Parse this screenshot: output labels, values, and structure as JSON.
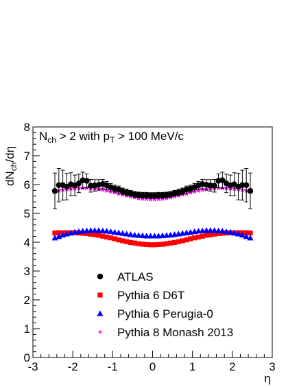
{
  "chart_data": {
    "type": "scatter",
    "annotation": {
      "prefix": "N",
      "prefix_sub": "ch",
      "middle": " > 2 with p",
      "middle_sub": "T",
      "suffix": " > 100 MeV/c"
    },
    "ylabel": {
      "main": "dN",
      "sub": "ch",
      "tail": "/dη"
    },
    "xlabel": "η",
    "xlim": [
      -3,
      3
    ],
    "ylim": [
      0,
      8
    ],
    "x_ticks": [
      "-3",
      "-2",
      "-1",
      "0",
      "1",
      "2",
      "3"
    ],
    "y_ticks": [
      "0",
      "1",
      "2",
      "3",
      "4",
      "5",
      "6",
      "7",
      "8"
    ],
    "grid": false,
    "legend_position": "bottom-center",
    "series": [
      {
        "name": "ATLAS",
        "marker": "circle",
        "color": "#000000",
        "x": [
          -2.45,
          -2.35,
          -2.25,
          -2.15,
          -2.05,
          -1.95,
          -1.85,
          -1.75,
          -1.65,
          -1.55,
          -1.45,
          -1.35,
          -1.25,
          -1.15,
          -1.05,
          -0.95,
          -0.85,
          -0.75,
          -0.65,
          -0.55,
          -0.45,
          -0.35,
          -0.25,
          -0.15,
          -0.05,
          0.05,
          0.15,
          0.25,
          0.35,
          0.45,
          0.55,
          0.65,
          0.75,
          0.85,
          0.95,
          1.05,
          1.15,
          1.25,
          1.35,
          1.45,
          1.55,
          1.65,
          1.75,
          1.85,
          1.95,
          2.05,
          2.15,
          2.25,
          2.35,
          2.45
        ],
        "y": [
          5.78,
          5.98,
          5.98,
          5.93,
          6.01,
          5.97,
          6.04,
          6.15,
          6.13,
          5.96,
          5.97,
          5.99,
          6.02,
          5.97,
          5.91,
          5.86,
          5.83,
          5.77,
          5.73,
          5.7,
          5.66,
          5.64,
          5.63,
          5.63,
          5.62,
          5.62,
          5.63,
          5.63,
          5.64,
          5.66,
          5.7,
          5.73,
          5.77,
          5.83,
          5.86,
          5.91,
          5.97,
          6.02,
          5.99,
          5.97,
          5.96,
          6.13,
          6.15,
          6.04,
          5.97,
          6.01,
          5.93,
          5.98,
          5.98,
          5.78
        ],
        "yerr": [
          0.62,
          0.58,
          0.52,
          0.46,
          0.4,
          0.36,
          0.32,
          0.28,
          0.24,
          0.22,
          0.2,
          0.18,
          0.16,
          0.14,
          0.13,
          0.12,
          0.12,
          0.11,
          0.11,
          0.1,
          0.1,
          0.1,
          0.1,
          0.1,
          0.1,
          0.1,
          0.1,
          0.1,
          0.1,
          0.1,
          0.1,
          0.11,
          0.11,
          0.12,
          0.12,
          0.13,
          0.14,
          0.16,
          0.18,
          0.2,
          0.22,
          0.24,
          0.28,
          0.32,
          0.36,
          0.4,
          0.46,
          0.52,
          0.58,
          0.62
        ]
      },
      {
        "name": "Pythia 6 D6T",
        "marker": "square",
        "color": "#ff0000",
        "x": [
          -2.45,
          -2.35,
          -2.25,
          -2.15,
          -2.05,
          -1.95,
          -1.85,
          -1.75,
          -1.65,
          -1.55,
          -1.45,
          -1.35,
          -1.25,
          -1.15,
          -1.05,
          -0.95,
          -0.85,
          -0.75,
          -0.65,
          -0.55,
          -0.45,
          -0.35,
          -0.25,
          -0.15,
          -0.05,
          0.05,
          0.15,
          0.25,
          0.35,
          0.45,
          0.55,
          0.65,
          0.75,
          0.85,
          0.95,
          1.05,
          1.15,
          1.25,
          1.35,
          1.45,
          1.55,
          1.65,
          1.75,
          1.85,
          1.95,
          2.05,
          2.15,
          2.25,
          2.35,
          2.45
        ],
        "y": [
          4.32,
          4.33,
          4.33,
          4.33,
          4.33,
          4.33,
          4.32,
          4.31,
          4.3,
          4.28,
          4.26,
          4.24,
          4.21,
          4.18,
          4.15,
          4.12,
          4.08,
          4.05,
          4.02,
          3.99,
          3.97,
          3.95,
          3.93,
          3.92,
          3.91,
          3.91,
          3.92,
          3.93,
          3.95,
          3.97,
          3.99,
          4.02,
          4.05,
          4.08,
          4.12,
          4.15,
          4.18,
          4.21,
          4.24,
          4.26,
          4.28,
          4.3,
          4.31,
          4.32,
          4.33,
          4.33,
          4.33,
          4.33,
          4.33,
          4.32
        ]
      },
      {
        "name": "Pythia 6 Perugia-0",
        "marker": "triangle",
        "color": "#0000ff",
        "x": [
          -2.45,
          -2.35,
          -2.25,
          -2.15,
          -2.05,
          -1.95,
          -1.85,
          -1.75,
          -1.65,
          -1.55,
          -1.45,
          -1.35,
          -1.25,
          -1.15,
          -1.05,
          -0.95,
          -0.85,
          -0.75,
          -0.65,
          -0.55,
          -0.45,
          -0.35,
          -0.25,
          -0.15,
          -0.05,
          0.05,
          0.15,
          0.25,
          0.35,
          0.45,
          0.55,
          0.65,
          0.75,
          0.85,
          0.95,
          1.05,
          1.15,
          1.25,
          1.35,
          1.45,
          1.55,
          1.65,
          1.75,
          1.85,
          1.95,
          2.05,
          2.15,
          2.25,
          2.35,
          2.45
        ],
        "y": [
          4.15,
          4.2,
          4.25,
          4.29,
          4.32,
          4.35,
          4.37,
          4.39,
          4.4,
          4.41,
          4.41,
          4.41,
          4.4,
          4.39,
          4.37,
          4.35,
          4.33,
          4.31,
          4.29,
          4.27,
          4.25,
          4.24,
          4.23,
          4.22,
          4.22,
          4.22,
          4.22,
          4.23,
          4.24,
          4.25,
          4.27,
          4.29,
          4.31,
          4.33,
          4.35,
          4.37,
          4.39,
          4.4,
          4.41,
          4.41,
          4.41,
          4.4,
          4.39,
          4.37,
          4.35,
          4.32,
          4.29,
          4.25,
          4.2,
          4.15
        ]
      },
      {
        "name": "Pythia 8 Monash 2013",
        "marker": "star",
        "color": "#ff00ff",
        "x": [
          -2.45,
          -2.35,
          -2.25,
          -2.15,
          -2.05,
          -1.95,
          -1.85,
          -1.75,
          -1.65,
          -1.55,
          -1.45,
          -1.35,
          -1.25,
          -1.15,
          -1.05,
          -0.95,
          -0.85,
          -0.75,
          -0.65,
          -0.55,
          -0.45,
          -0.35,
          -0.25,
          -0.15,
          -0.05,
          0.05,
          0.15,
          0.25,
          0.35,
          0.45,
          0.55,
          0.65,
          0.75,
          0.85,
          0.95,
          1.05,
          1.15,
          1.25,
          1.35,
          1.45,
          1.55,
          1.65,
          1.75,
          1.85,
          1.95,
          2.05,
          2.15,
          2.25,
          2.35,
          2.45
        ],
        "y": [
          5.76,
          5.79,
          5.82,
          5.84,
          5.86,
          5.87,
          5.88,
          5.88,
          5.88,
          5.87,
          5.86,
          5.84,
          5.82,
          5.79,
          5.76,
          5.73,
          5.69,
          5.66,
          5.62,
          5.59,
          5.56,
          5.53,
          5.51,
          5.5,
          5.49,
          5.49,
          5.5,
          5.51,
          5.53,
          5.56,
          5.59,
          5.62,
          5.66,
          5.69,
          5.73,
          5.76,
          5.79,
          5.82,
          5.84,
          5.86,
          5.87,
          5.88,
          5.88,
          5.88,
          5.87,
          5.86,
          5.84,
          5.82,
          5.79,
          5.76
        ]
      }
    ]
  }
}
